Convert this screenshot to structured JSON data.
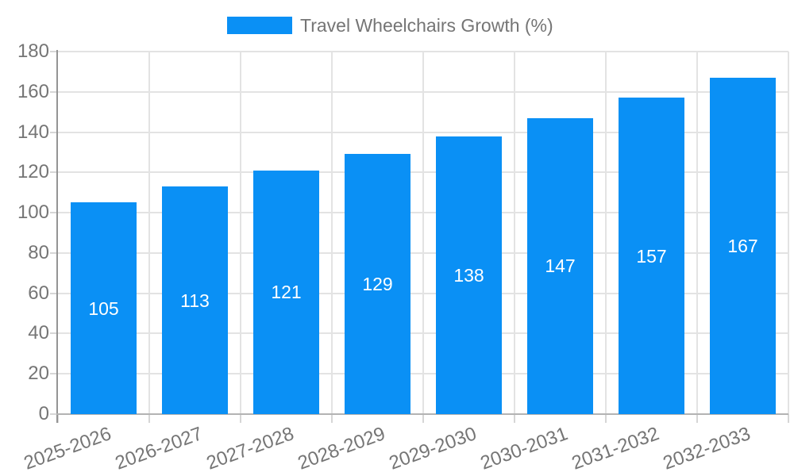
{
  "legend": {
    "label": "Travel Wheelchairs Growth (%)"
  },
  "colors": {
    "bar": "#0a90f5",
    "axis_text": "#757575",
    "value_label_text": "#ffffff",
    "gridline": "#e3e3e3",
    "tick": "#d6d6d6",
    "y_axis_line": "#949494",
    "x_axis_line": "#b3b3b3",
    "background": "#ffffff"
  },
  "chart_data": {
    "type": "bar",
    "title": "Travel Wheelchairs Growth (%)",
    "categories": [
      "2025-2026",
      "2026-2027",
      "2027-2028",
      "2028-2029",
      "2029-2030",
      "2030-2031",
      "2031-2032",
      "2032-2033"
    ],
    "values": [
      105,
      113,
      121,
      129,
      138,
      147,
      157,
      167
    ],
    "series": [
      {
        "name": "Travel Wheelchairs Growth (%)",
        "values": [
          105,
          113,
          121,
          129,
          138,
          147,
          157,
          167
        ]
      }
    ],
    "xlabel": "",
    "ylabel": "",
    "ylim": [
      0,
      180
    ],
    "ytick_step": 20,
    "ytick_labels": [
      "0",
      "20",
      "40",
      "60",
      "80",
      "100",
      "120",
      "140",
      "160",
      "180"
    ],
    "grid": true,
    "legend_position": "top-center",
    "value_labels_position": "inside-center",
    "bar_color": "#0a90f5"
  }
}
